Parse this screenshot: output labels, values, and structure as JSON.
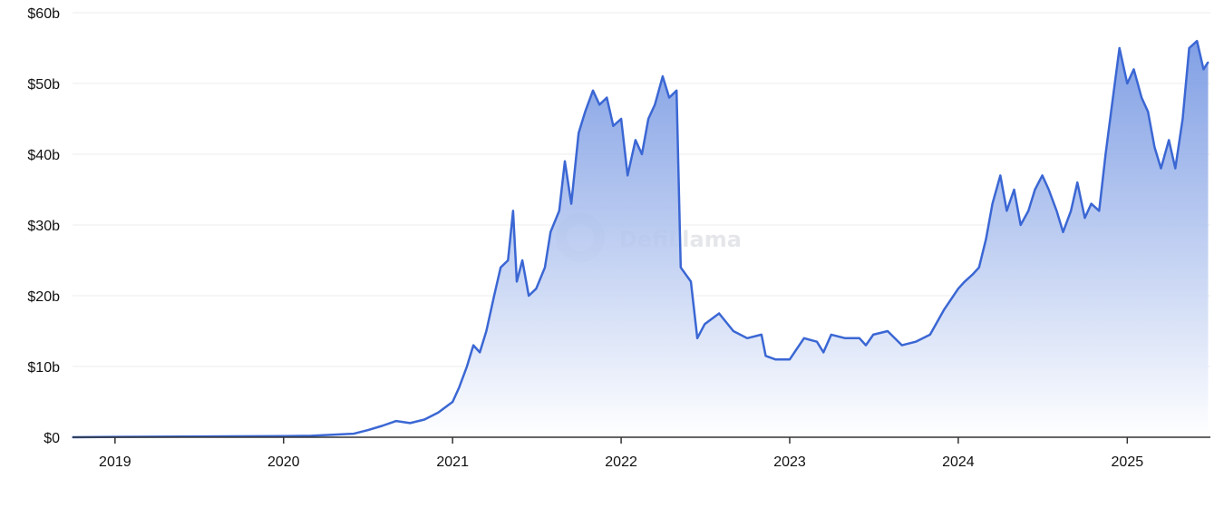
{
  "watermark": "DefiLlama",
  "colors": {
    "line": "#3b67d4",
    "fill_top": "#6b8fe0",
    "fill_bottom": "#ffffff",
    "grid": "#eeeeee",
    "axis": "#333333",
    "text": "#111111"
  },
  "chart_data": {
    "type": "area",
    "title": "",
    "xlabel": "",
    "ylabel": "",
    "grid": true,
    "y_ticks": [
      {
        "value": 0,
        "label": "$0"
      },
      {
        "value": 10,
        "label": "$10b"
      },
      {
        "value": 20,
        "label": "$20b"
      },
      {
        "value": 30,
        "label": "$30b"
      },
      {
        "value": 40,
        "label": "$40b"
      },
      {
        "value": 50,
        "label": "$50b"
      },
      {
        "value": 60,
        "label": "$60b"
      }
    ],
    "x_ticks": [
      {
        "value": "2019-01-01",
        "label": "2019"
      },
      {
        "value": "2020-01-01",
        "label": "2020"
      },
      {
        "value": "2021-01-01",
        "label": "2021"
      },
      {
        "value": "2022-01-01",
        "label": "2022"
      },
      {
        "value": "2023-01-01",
        "label": "2023"
      },
      {
        "value": "2024-01-01",
        "label": "2024"
      },
      {
        "value": "2025-01-01",
        "label": "2025"
      }
    ],
    "xlim": [
      "2018-10-01",
      "2025-06-30"
    ],
    "ylim": [
      0,
      60
    ],
    "series": [
      {
        "points": [
          [
            "2018-10-01",
            0.0
          ],
          [
            "2019-01-01",
            0.05
          ],
          [
            "2019-06-01",
            0.1
          ],
          [
            "2020-01-01",
            0.15
          ],
          [
            "2020-03-01",
            0.2
          ],
          [
            "2020-06-01",
            0.5
          ],
          [
            "2020-07-01",
            1.0
          ],
          [
            "2020-08-01",
            1.6
          ],
          [
            "2020-09-01",
            2.3
          ],
          [
            "2020-10-01",
            2.0
          ],
          [
            "2020-11-01",
            2.5
          ],
          [
            "2020-12-01",
            3.5
          ],
          [
            "2021-01-01",
            5.0
          ],
          [
            "2021-01-15",
            7.0
          ],
          [
            "2021-02-01",
            10.0
          ],
          [
            "2021-02-15",
            13.0
          ],
          [
            "2021-03-01",
            12.0
          ],
          [
            "2021-03-15",
            15.0
          ],
          [
            "2021-04-01",
            20.0
          ],
          [
            "2021-04-15",
            24.0
          ],
          [
            "2021-05-01",
            25.0
          ],
          [
            "2021-05-12",
            32.0
          ],
          [
            "2021-05-20",
            22.0
          ],
          [
            "2021-06-01",
            25.0
          ],
          [
            "2021-06-15",
            20.0
          ],
          [
            "2021-07-01",
            21.0
          ],
          [
            "2021-07-20",
            24.0
          ],
          [
            "2021-08-01",
            29.0
          ],
          [
            "2021-08-20",
            32.0
          ],
          [
            "2021-09-01",
            39.0
          ],
          [
            "2021-09-15",
            33.0
          ],
          [
            "2021-10-01",
            43.0
          ],
          [
            "2021-10-15",
            46.0
          ],
          [
            "2021-11-01",
            49.0
          ],
          [
            "2021-11-15",
            47.0
          ],
          [
            "2021-12-01",
            48.0
          ],
          [
            "2021-12-15",
            44.0
          ],
          [
            "2022-01-01",
            45.0
          ],
          [
            "2022-01-15",
            37.0
          ],
          [
            "2022-02-01",
            42.0
          ],
          [
            "2022-02-15",
            40.0
          ],
          [
            "2022-03-01",
            45.0
          ],
          [
            "2022-03-15",
            47.0
          ],
          [
            "2022-04-01",
            51.0
          ],
          [
            "2022-04-15",
            48.0
          ],
          [
            "2022-05-01",
            49.0
          ],
          [
            "2022-05-10",
            24.0
          ],
          [
            "2022-06-01",
            22.0
          ],
          [
            "2022-06-15",
            14.0
          ],
          [
            "2022-07-01",
            16.0
          ],
          [
            "2022-08-01",
            17.5
          ],
          [
            "2022-09-01",
            15.0
          ],
          [
            "2022-10-01",
            14.0
          ],
          [
            "2022-11-01",
            14.5
          ],
          [
            "2022-11-10",
            11.5
          ],
          [
            "2022-12-01",
            11.0
          ],
          [
            "2023-01-01",
            11.0
          ],
          [
            "2023-02-01",
            14.0
          ],
          [
            "2023-03-01",
            13.5
          ],
          [
            "2023-03-15",
            12.0
          ],
          [
            "2023-04-01",
            14.5
          ],
          [
            "2023-05-01",
            14.0
          ],
          [
            "2023-06-01",
            14.0
          ],
          [
            "2023-06-15",
            13.0
          ],
          [
            "2023-07-01",
            14.5
          ],
          [
            "2023-08-01",
            15.0
          ],
          [
            "2023-09-01",
            13.0
          ],
          [
            "2023-10-01",
            13.5
          ],
          [
            "2023-11-01",
            14.5
          ],
          [
            "2023-12-01",
            18.0
          ],
          [
            "2024-01-01",
            21.0
          ],
          [
            "2024-01-15",
            22.0
          ],
          [
            "2024-02-01",
            23.0
          ],
          [
            "2024-02-15",
            24.0
          ],
          [
            "2024-03-01",
            28.0
          ],
          [
            "2024-03-15",
            33.0
          ],
          [
            "2024-04-01",
            37.0
          ],
          [
            "2024-04-15",
            32.0
          ],
          [
            "2024-05-01",
            35.0
          ],
          [
            "2024-05-15",
            30.0
          ],
          [
            "2024-06-01",
            32.0
          ],
          [
            "2024-06-15",
            35.0
          ],
          [
            "2024-07-01",
            37.0
          ],
          [
            "2024-07-15",
            35.0
          ],
          [
            "2024-08-01",
            32.0
          ],
          [
            "2024-08-15",
            29.0
          ],
          [
            "2024-09-01",
            32.0
          ],
          [
            "2024-09-15",
            36.0
          ],
          [
            "2024-10-01",
            31.0
          ],
          [
            "2024-10-15",
            33.0
          ],
          [
            "2024-11-01",
            32.0
          ],
          [
            "2024-11-15",
            40.0
          ],
          [
            "2024-12-01",
            48.0
          ],
          [
            "2024-12-15",
            55.0
          ],
          [
            "2025-01-01",
            50.0
          ],
          [
            "2025-01-15",
            52.0
          ],
          [
            "2025-02-01",
            48.0
          ],
          [
            "2025-02-15",
            46.0
          ],
          [
            "2025-03-01",
            41.0
          ],
          [
            "2025-03-15",
            38.0
          ],
          [
            "2025-04-01",
            42.0
          ],
          [
            "2025-04-15",
            38.0
          ],
          [
            "2025-05-01",
            45.0
          ],
          [
            "2025-05-15",
            55.0
          ],
          [
            "2025-06-01",
            56.0
          ],
          [
            "2025-06-15",
            52.0
          ],
          [
            "2025-06-25",
            53.0
          ]
        ]
      }
    ]
  }
}
